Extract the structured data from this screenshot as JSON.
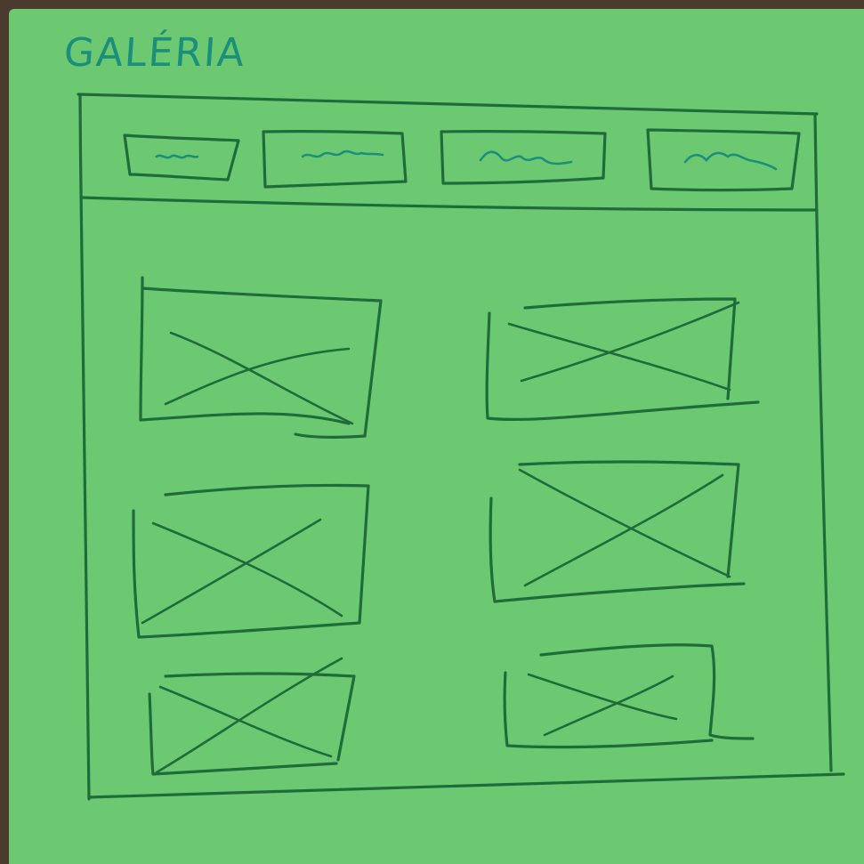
{
  "header": {
    "title": "GALÉRIA"
  },
  "nav": {
    "tabs": [
      {
        "label_icon": "scribble-label"
      },
      {
        "label_icon": "scribble-label"
      },
      {
        "label_icon": "scribble-label"
      },
      {
        "label_icon": "scribble-label"
      }
    ]
  },
  "gallery": {
    "placeholder_icon": "image-placeholder-icon",
    "items": [
      {
        "kind": "image-placeholder"
      },
      {
        "kind": "image-placeholder"
      },
      {
        "kind": "image-placeholder"
      },
      {
        "kind": "image-placeholder"
      },
      {
        "kind": "image-placeholder"
      },
      {
        "kind": "image-placeholder"
      }
    ]
  },
  "colors": {
    "paper": "#6cc972",
    "pencil": "#1f6b3a",
    "title_ink": "#1b8f7a",
    "table": "#4a3a30"
  }
}
